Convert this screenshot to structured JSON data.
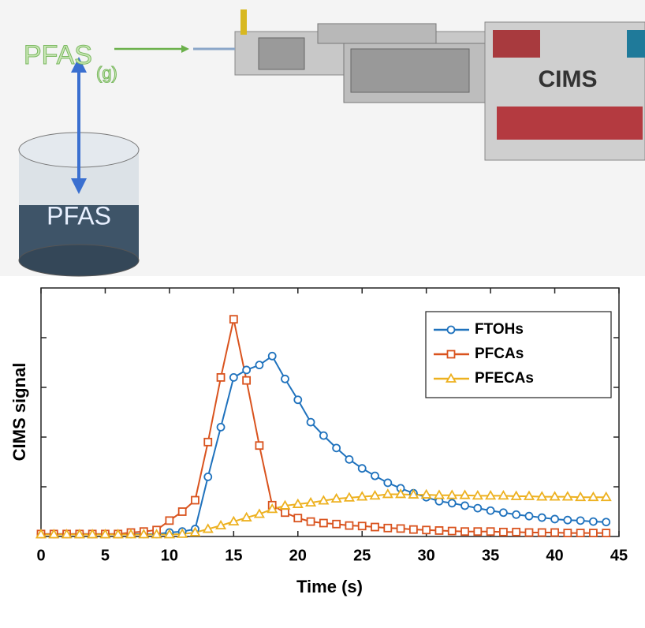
{
  "diagram": {
    "gas_label": {
      "text": "PFAS",
      "subscript": "(g)"
    },
    "liquid_label": "PFAS",
    "instrument_label": "CIMS"
  },
  "chart_data": {
    "type": "line",
    "x_label": "Time (s)",
    "y_label": "CIMS signal",
    "x": [
      0,
      1,
      2,
      3,
      4,
      5,
      6,
      7,
      8,
      9,
      10,
      11,
      12,
      13,
      14,
      15,
      16,
      17,
      18,
      19,
      20,
      21,
      22,
      23,
      24,
      25,
      26,
      27,
      28,
      29,
      30,
      31,
      32,
      33,
      34,
      35,
      36,
      37,
      38,
      39,
      40,
      41,
      42,
      43,
      44
    ],
    "series": [
      {
        "name": "FTOHs",
        "color": "#1f72bd",
        "marker": "circle",
        "values": [
          0.05,
          0.05,
          0.05,
          0.05,
          0.05,
          0.05,
          0.05,
          0.05,
          0.05,
          0.05,
          0.08,
          0.1,
          0.15,
          1.2,
          2.2,
          3.2,
          3.35,
          3.45,
          3.63,
          3.17,
          2.75,
          2.3,
          2.03,
          1.78,
          1.55,
          1.37,
          1.22,
          1.08,
          0.97,
          0.87,
          0.79,
          0.71,
          0.67,
          0.62,
          0.57,
          0.52,
          0.48,
          0.44,
          0.41,
          0.38,
          0.35,
          0.33,
          0.32,
          0.3,
          0.29
        ]
      },
      {
        "name": "PFCAs",
        "color": "#d9531e",
        "marker": "square",
        "values": [
          0.05,
          0.05,
          0.05,
          0.05,
          0.05,
          0.05,
          0.05,
          0.08,
          0.1,
          0.13,
          0.32,
          0.5,
          0.73,
          1.9,
          3.2,
          4.37,
          3.14,
          1.83,
          0.63,
          0.48,
          0.37,
          0.3,
          0.27,
          0.25,
          0.22,
          0.21,
          0.19,
          0.17,
          0.16,
          0.14,
          0.13,
          0.12,
          0.11,
          0.1,
          0.1,
          0.1,
          0.09,
          0.09,
          0.08,
          0.08,
          0.08,
          0.07,
          0.07,
          0.07,
          0.07
        ]
      },
      {
        "name": "PFECAs",
        "color": "#edb120",
        "marker": "triangle",
        "values": [
          0.04,
          0.04,
          0.04,
          0.04,
          0.04,
          0.04,
          0.04,
          0.04,
          0.04,
          0.04,
          0.04,
          0.05,
          0.08,
          0.15,
          0.22,
          0.3,
          0.38,
          0.45,
          0.55,
          0.62,
          0.65,
          0.68,
          0.72,
          0.76,
          0.78,
          0.8,
          0.82,
          0.85,
          0.85,
          0.84,
          0.84,
          0.83,
          0.83,
          0.83,
          0.82,
          0.82,
          0.82,
          0.81,
          0.81,
          0.8,
          0.8,
          0.8,
          0.79,
          0.79,
          0.79
        ]
      }
    ],
    "xlim": [
      0,
      45
    ],
    "xticks": [
      0,
      5,
      10,
      15,
      20,
      25,
      30,
      35,
      40,
      45
    ],
    "ylim": [
      0,
      5
    ],
    "yticks": [
      1,
      2,
      3,
      4
    ],
    "legend": "upper right"
  }
}
